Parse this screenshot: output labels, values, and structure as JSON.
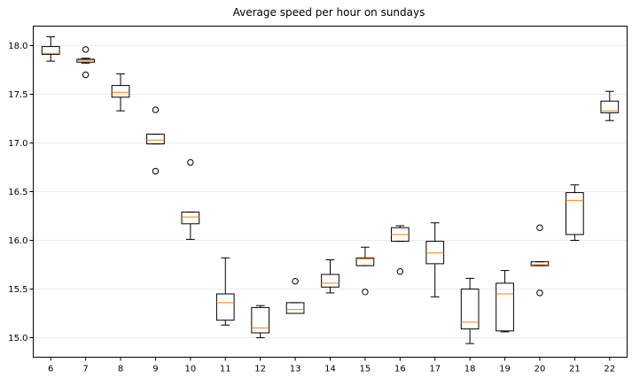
{
  "chart_data": {
    "type": "box",
    "title": "Average speed per hour on sundays",
    "xlabel": "",
    "ylabel": "",
    "categories": [
      "6",
      "7",
      "8",
      "9",
      "10",
      "11",
      "12",
      "13",
      "14",
      "15",
      "16",
      "17",
      "18",
      "19",
      "20",
      "21",
      "22"
    ],
    "ylim": [
      14.8,
      18.2
    ],
    "yticks": [
      15.0,
      15.5,
      16.0,
      16.5,
      17.0,
      17.5,
      18.0
    ],
    "ytick_labels": [
      "15.0",
      "15.5",
      "16.0",
      "16.5",
      "17.0",
      "17.5",
      "18.0"
    ],
    "grid": "horizontal",
    "colors": {
      "box": "#000000",
      "median": "#ff7f0e",
      "grid": "#ebebeb"
    },
    "boxes": [
      {
        "category": "6",
        "whislo": 17.84,
        "q1": 17.91,
        "med": 17.92,
        "q3": 17.99,
        "whishi": 18.09,
        "fliers": []
      },
      {
        "category": "7",
        "whislo": 17.82,
        "q1": 17.83,
        "med": 17.85,
        "q3": 17.86,
        "whishi": 17.87,
        "fliers": [
          17.7,
          17.96
        ]
      },
      {
        "category": "8",
        "whislo": 17.33,
        "q1": 17.47,
        "med": 17.52,
        "q3": 17.59,
        "whishi": 17.71,
        "fliers": []
      },
      {
        "category": "9",
        "whislo": 16.99,
        "q1": 16.99,
        "med": 17.03,
        "q3": 17.09,
        "whishi": 17.09,
        "fliers": [
          17.34,
          16.71
        ]
      },
      {
        "category": "10",
        "whislo": 16.01,
        "q1": 16.17,
        "med": 16.24,
        "q3": 16.29,
        "whishi": 16.29,
        "fliers": [
          16.8
        ]
      },
      {
        "category": "11",
        "whislo": 15.13,
        "q1": 15.18,
        "med": 15.36,
        "q3": 15.45,
        "whishi": 15.82,
        "fliers": []
      },
      {
        "category": "12",
        "whislo": 15.0,
        "q1": 15.05,
        "med": 15.1,
        "q3": 15.31,
        "whishi": 15.33,
        "fliers": []
      },
      {
        "category": "13",
        "whislo": 15.25,
        "q1": 15.25,
        "med": 15.29,
        "q3": 15.36,
        "whishi": 15.36,
        "fliers": [
          15.58
        ]
      },
      {
        "category": "14",
        "whislo": 15.46,
        "q1": 15.52,
        "med": 15.56,
        "q3": 15.65,
        "whishi": 15.8,
        "fliers": []
      },
      {
        "category": "15",
        "whislo": 15.74,
        "q1": 15.74,
        "med": 15.81,
        "q3": 15.82,
        "whishi": 15.93,
        "fliers": [
          15.47
        ]
      },
      {
        "category": "16",
        "whislo": 15.99,
        "q1": 15.99,
        "med": 16.06,
        "q3": 16.13,
        "whishi": 16.15,
        "fliers": [
          15.68
        ]
      },
      {
        "category": "17",
        "whislo": 15.42,
        "q1": 15.76,
        "med": 15.87,
        "q3": 15.99,
        "whishi": 16.18,
        "fliers": []
      },
      {
        "category": "18",
        "whislo": 14.94,
        "q1": 15.09,
        "med": 15.16,
        "q3": 15.5,
        "whishi": 15.61,
        "fliers": []
      },
      {
        "category": "19",
        "whislo": 15.06,
        "q1": 15.07,
        "med": 15.45,
        "q3": 15.56,
        "whishi": 15.69,
        "fliers": []
      },
      {
        "category": "20",
        "whislo": 15.74,
        "q1": 15.74,
        "med": 15.75,
        "q3": 15.78,
        "whishi": 15.78,
        "fliers": [
          16.13,
          15.46
        ]
      },
      {
        "category": "21",
        "whislo": 16.0,
        "q1": 16.06,
        "med": 16.41,
        "q3": 16.49,
        "whishi": 16.57,
        "fliers": []
      },
      {
        "category": "22",
        "whislo": 17.23,
        "q1": 17.31,
        "med": 17.33,
        "q3": 17.43,
        "whishi": 17.53,
        "fliers": []
      }
    ]
  }
}
